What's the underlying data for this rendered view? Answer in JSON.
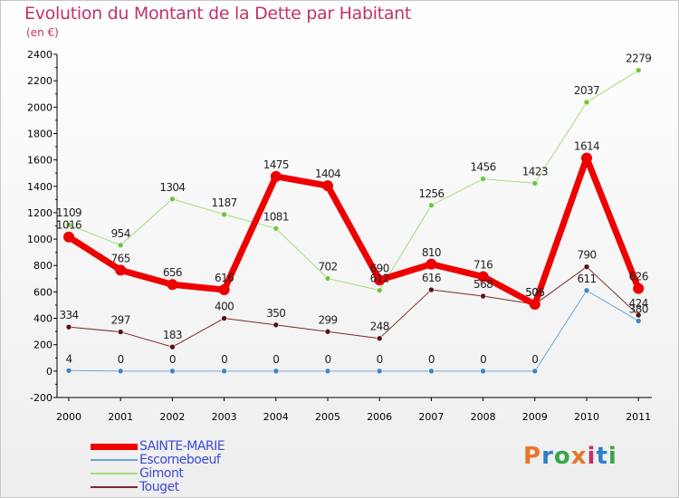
{
  "title": "Evolution du Montant de la Dette par Habitant",
  "unit": "(en €)",
  "logo": "Proxiti",
  "logo_colors": [
    "#e8762a",
    "#2f7fc7",
    "#3aa64a",
    "#e8762a",
    "#c0336b",
    "#2f7fc7",
    "#3aa64a"
  ],
  "chart_data": {
    "type": "line",
    "x": [
      "2000",
      "2001",
      "2002",
      "2003",
      "2004",
      "2005",
      "2006",
      "2007",
      "2008",
      "2009",
      "2010",
      "2011"
    ],
    "ylim": [
      -200,
      2400
    ],
    "yticks": [
      -200,
      0,
      200,
      400,
      600,
      800,
      1000,
      1200,
      1400,
      1600,
      1800,
      2000,
      2200,
      2400
    ],
    "grid": false,
    "legend_position": "bottom-left",
    "series": [
      {
        "name": "Touget",
        "color": "#7a2a2a",
        "marker": "#5a1010",
        "width": 1,
        "values": [
          334,
          297,
          183,
          400,
          350,
          299,
          248,
          616,
          568,
          506,
          790,
          424
        ]
      },
      {
        "name": "Gimont",
        "color": "#a6dc7a",
        "marker": "#6cc83a",
        "width": 1,
        "values": [
          1109,
          954,
          1304,
          1187,
          1081,
          702,
          612,
          1256,
          1456,
          1423,
          2037,
          2279
        ]
      },
      {
        "name": "Escorneboeuf",
        "color": "#6aa6d8",
        "marker": "#3a86c8",
        "width": 1,
        "values": [
          4,
          0,
          0,
          0,
          0,
          0,
          0,
          0,
          0,
          0,
          611,
          380
        ]
      },
      {
        "name": "SAINTE-MARIE",
        "color": "#ee0000",
        "marker": "#ee0000",
        "width": 7,
        "values": [
          1016,
          765,
          656,
          616,
          1475,
          1404,
          690,
          810,
          716,
          506,
          1614,
          626
        ]
      }
    ]
  }
}
